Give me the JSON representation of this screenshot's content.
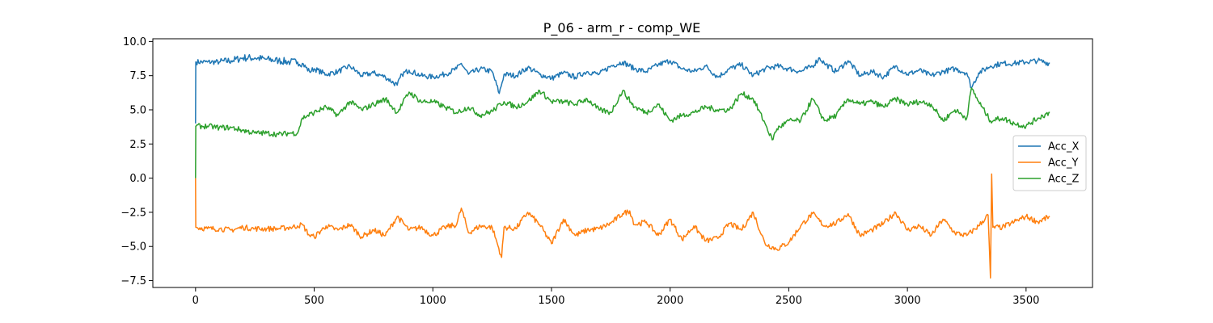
{
  "chart_data": {
    "type": "line",
    "title": "P_06 - arm_r - comp_WE",
    "xlabel": "",
    "ylabel": "",
    "xlim": [
      -180,
      3780
    ],
    "ylim": [
      -8.0,
      10.2
    ],
    "xticks": [
      0,
      500,
      1000,
      1500,
      2000,
      2500,
      3000,
      3500
    ],
    "xtick_labels": [
      "0",
      "500",
      "1000",
      "1500",
      "2000",
      "2500",
      "3000",
      "3500"
    ],
    "yticks": [
      10.0,
      7.5,
      5.0,
      2.5,
      0.0,
      -2.5,
      -5.0,
      -7.5
    ],
    "ytick_labels": [
      "10.0",
      "7.5",
      "5.0",
      "2.5",
      "0.0",
      "−2.5",
      "−5.0",
      "−7.5"
    ],
    "grid": false,
    "legend_position": "right",
    "series": [
      {
        "name": "Acc_X",
        "color": "#1f77b4",
        "x": [
          0,
          1,
          2,
          50,
          100,
          150,
          200,
          250,
          300,
          350,
          400,
          430,
          450,
          480,
          500,
          550,
          600,
          650,
          700,
          750,
          800,
          850,
          870,
          900,
          950,
          1000,
          1050,
          1100,
          1120,
          1150,
          1200,
          1250,
          1280,
          1300,
          1350,
          1400,
          1450,
          1500,
          1550,
          1600,
          1650,
          1700,
          1750,
          1800,
          1850,
          1900,
          1950,
          2000,
          2050,
          2100,
          2150,
          2200,
          2250,
          2300,
          2350,
          2400,
          2450,
          2500,
          2550,
          2600,
          2630,
          2650,
          2700,
          2750,
          2800,
          2850,
          2900,
          2950,
          3000,
          3050,
          3100,
          3150,
          3200,
          3250,
          3270,
          3300,
          3350,
          3400,
          3450,
          3500,
          3550,
          3600
        ],
        "y": [
          4.0,
          8.5,
          8.5,
          8.5,
          8.5,
          8.6,
          8.8,
          8.8,
          8.7,
          8.6,
          8.5,
          8.5,
          8.4,
          7.8,
          8.0,
          7.6,
          7.8,
          8.2,
          7.5,
          7.7,
          7.4,
          6.8,
          7.6,
          7.9,
          7.5,
          7.4,
          7.6,
          8.0,
          8.4,
          7.6,
          8.0,
          7.8,
          6.2,
          7.6,
          7.5,
          8.1,
          7.6,
          7.3,
          7.7,
          7.4,
          7.8,
          7.6,
          8.2,
          8.5,
          8.0,
          7.8,
          8.3,
          8.6,
          8.0,
          7.8,
          8.2,
          7.4,
          8.0,
          8.3,
          7.5,
          8.0,
          8.2,
          8.0,
          7.8,
          8.2,
          8.8,
          8.4,
          7.8,
          8.6,
          7.5,
          7.8,
          7.4,
          8.2,
          7.6,
          7.9,
          7.5,
          7.8,
          8.0,
          7.7,
          6.6,
          7.7,
          8.2,
          8.4,
          8.4,
          8.5,
          8.6,
          8.4
        ]
      },
      {
        "name": "Acc_Y",
        "color": "#ff7f0e",
        "x": [
          0,
          1,
          2,
          50,
          100,
          150,
          200,
          250,
          300,
          350,
          400,
          430,
          450,
          480,
          500,
          550,
          600,
          650,
          700,
          750,
          800,
          850,
          900,
          950,
          1000,
          1050,
          1100,
          1120,
          1150,
          1200,
          1250,
          1290,
          1300,
          1350,
          1400,
          1450,
          1500,
          1550,
          1600,
          1650,
          1700,
          1750,
          1800,
          1830,
          1850,
          1900,
          1950,
          2000,
          2050,
          2100,
          2150,
          2200,
          2250,
          2300,
          2350,
          2400,
          2450,
          2500,
          2550,
          2600,
          2650,
          2700,
          2750,
          2800,
          2850,
          2900,
          2950,
          3000,
          3050,
          3100,
          3150,
          3200,
          3250,
          3300,
          3340,
          3350,
          3355,
          3360,
          3400,
          3450,
          3500,
          3550,
          3600
        ],
        "y": [
          0.0,
          -3.6,
          -3.6,
          -3.7,
          -3.7,
          -3.8,
          -3.6,
          -3.7,
          -3.7,
          -3.7,
          -3.6,
          -3.5,
          -3.4,
          -4.2,
          -4.3,
          -3.5,
          -3.8,
          -3.4,
          -4.3,
          -3.8,
          -4.2,
          -2.8,
          -3.8,
          -3.6,
          -4.2,
          -3.6,
          -3.4,
          -2.2,
          -4.0,
          -3.5,
          -3.6,
          -5.8,
          -3.6,
          -3.7,
          -2.5,
          -3.4,
          -4.8,
          -3.0,
          -4.2,
          -3.8,
          -3.7,
          -3.3,
          -2.6,
          -2.4,
          -3.4,
          -3.2,
          -4.2,
          -3.0,
          -4.5,
          -3.5,
          -4.6,
          -4.4,
          -3.3,
          -3.8,
          -2.5,
          -4.8,
          -5.2,
          -4.7,
          -3.5,
          -2.6,
          -3.5,
          -3.3,
          -2.6,
          -4.2,
          -3.8,
          -3.3,
          -2.5,
          -3.8,
          -3.5,
          -4.2,
          -3.0,
          -4.0,
          -4.2,
          -3.5,
          -2.7,
          -7.3,
          0.3,
          -3.6,
          -3.6,
          -3.2,
          -2.8,
          -3.2,
          -2.8
        ]
      },
      {
        "name": "Acc_Z",
        "color": "#2ca02c",
        "x": [
          0,
          1,
          2,
          50,
          100,
          150,
          200,
          250,
          300,
          350,
          400,
          430,
          450,
          500,
          550,
          600,
          650,
          700,
          750,
          800,
          850,
          900,
          950,
          1000,
          1050,
          1100,
          1150,
          1200,
          1250,
          1300,
          1350,
          1400,
          1450,
          1500,
          1550,
          1600,
          1650,
          1700,
          1750,
          1800,
          1850,
          1900,
          1950,
          2000,
          2050,
          2100,
          2150,
          2200,
          2250,
          2300,
          2350,
          2400,
          2430,
          2450,
          2500,
          2550,
          2600,
          2650,
          2700,
          2750,
          2800,
          2850,
          2900,
          2950,
          3000,
          3050,
          3100,
          3150,
          3200,
          3250,
          3270,
          3300,
          3350,
          3400,
          3450,
          3500,
          3550,
          3600
        ],
        "y": [
          0.0,
          3.8,
          3.8,
          3.8,
          3.7,
          3.7,
          3.5,
          3.3,
          3.3,
          3.2,
          3.3,
          3.3,
          4.4,
          4.8,
          5.2,
          4.6,
          5.6,
          5.0,
          5.4,
          5.8,
          4.8,
          6.3,
          5.6,
          5.6,
          5.2,
          4.8,
          5.2,
          4.6,
          4.9,
          5.6,
          5.2,
          5.6,
          6.4,
          5.6,
          5.6,
          5.4,
          5.8,
          5.0,
          4.8,
          6.4,
          5.2,
          4.8,
          5.4,
          4.2,
          4.6,
          4.8,
          5.2,
          5.0,
          5.0,
          6.2,
          5.8,
          4.0,
          2.8,
          3.6,
          4.2,
          4.2,
          5.8,
          4.2,
          4.6,
          5.8,
          5.4,
          5.6,
          5.2,
          5.8,
          5.4,
          5.6,
          5.4,
          4.2,
          5.0,
          4.4,
          6.6,
          5.6,
          4.2,
          4.4,
          4.0,
          3.8,
          4.4,
          4.8
        ]
      }
    ]
  }
}
